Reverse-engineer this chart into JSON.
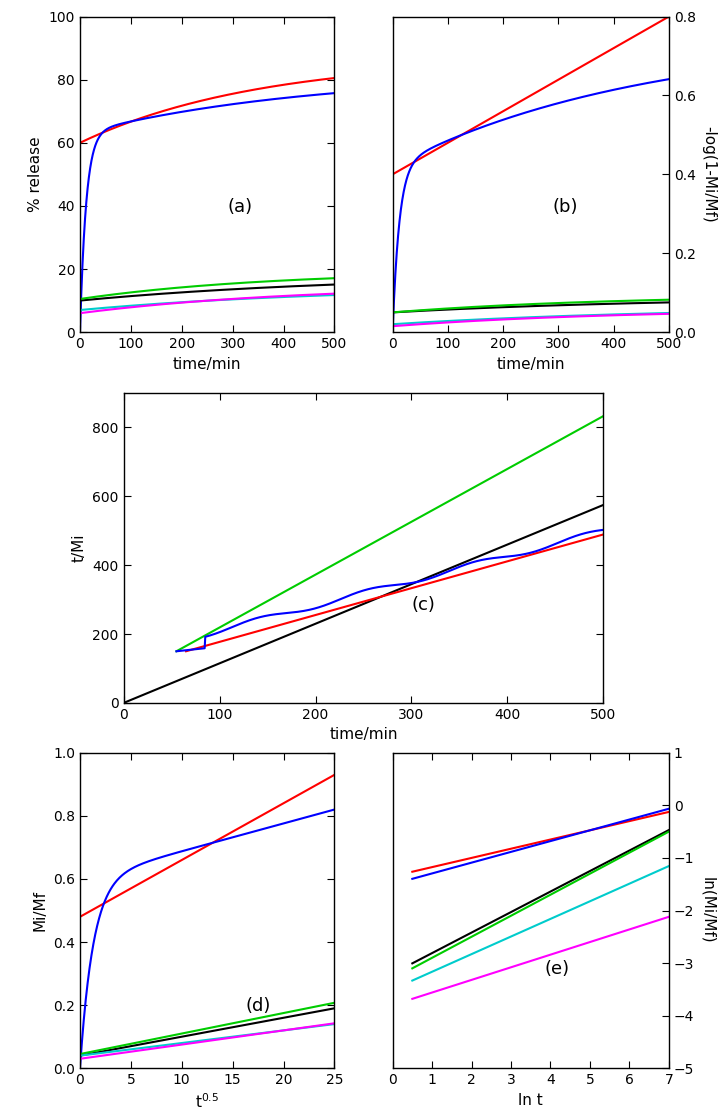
{
  "panel_a": {
    "title": "(a)",
    "xlabel": "time/min",
    "ylabel": "% release",
    "xlim": [
      0,
      500
    ],
    "ylim": [
      0,
      100
    ],
    "yticks": [
      0,
      20,
      40,
      60,
      80,
      100
    ],
    "xticks": [
      0,
      100,
      200,
      300,
      400,
      500
    ]
  },
  "panel_b": {
    "title": "(b)",
    "xlabel": "time/min",
    "ylabel": "-log(1-Mi/Mf)",
    "xlim": [
      0,
      500
    ],
    "ylim": [
      0,
      0.8
    ],
    "yticks": [
      0,
      0.2,
      0.4,
      0.6,
      0.8
    ],
    "xticks": [
      0,
      100,
      200,
      300,
      400,
      500
    ]
  },
  "panel_c": {
    "title": "(c)",
    "xlabel": "time/min",
    "ylabel": "t/Mi",
    "xlim": [
      0,
      500
    ],
    "ylim": [
      0,
      900
    ],
    "yticks": [
      0,
      200,
      400,
      600,
      800
    ],
    "xticks": [
      0,
      100,
      200,
      300,
      400,
      500
    ]
  },
  "panel_d": {
    "title": "(d)",
    "xlabel": "t^0.5",
    "ylabel": "Mi/Mf",
    "xlim": [
      0,
      25
    ],
    "ylim": [
      0,
      1.0
    ],
    "yticks": [
      0.0,
      0.2,
      0.4,
      0.6,
      0.8,
      1.0
    ],
    "xticks": [
      0,
      5,
      10,
      15,
      20,
      25
    ]
  },
  "panel_e": {
    "title": "(e)",
    "xlabel": "ln t",
    "ylabel": "ln(Mi/Mf)",
    "xlim": [
      0,
      7
    ],
    "ylim": [
      -5,
      1
    ],
    "yticks": [
      -5,
      -4,
      -3,
      -2,
      -1,
      0,
      1
    ],
    "xticks": [
      0,
      1,
      2,
      3,
      4,
      5,
      6,
      7
    ]
  },
  "colors": {
    "red": "#ff0000",
    "blue": "#0000ff",
    "black": "#000000",
    "green": "#00cc00",
    "cyan": "#00cccc",
    "magenta": "#ff00ff"
  },
  "bg_color": "#ffffff"
}
